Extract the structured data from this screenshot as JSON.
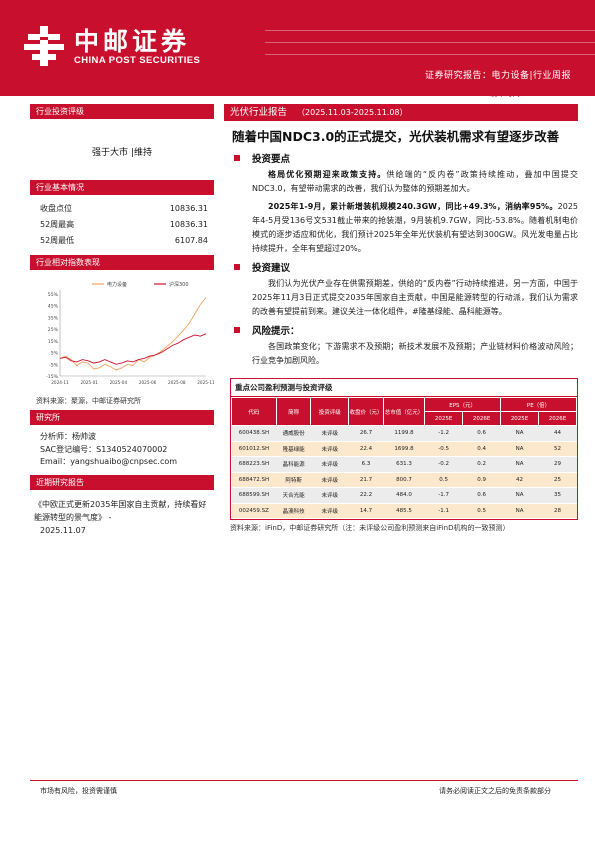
{
  "header": {
    "brand_cn": "中邮证券",
    "brand_en": "CHINA POST SECURITIES",
    "report_type": "证券研究报告：电力设备|行业周报",
    "publish_time": "发布时间：2025-11-11"
  },
  "left": {
    "rating_section": "行业投资评级",
    "rating_value": "强于大市 |维持",
    "basic_section": "行业基本情况",
    "basic_rows": [
      {
        "label": "收盘点位",
        "value": "10836.31"
      },
      {
        "label": "52周最高",
        "value": "10836.31"
      },
      {
        "label": "52周最低",
        "value": "6107.84"
      }
    ],
    "perf_section": "行业相对指数表现",
    "chart_source": "资料来源：聚源，中邮证券研究所",
    "analyst_section": "研究所",
    "analyst_lines": [
      "分析师：杨帅波",
      "SAC登记编号：S1340524070002",
      "Email：yangshuaibo@cnpsec.com"
    ],
    "recent_section": "近期研究报告",
    "recent_title": "《中欧正式更新2035年国家自主贡献，持续看好能源转型的景气度》 -",
    "recent_date": "2025.11.07"
  },
  "chart_data": {
    "type": "line",
    "legend": [
      "电力设备",
      "沪深300"
    ],
    "colors": {
      "电力设备": "#f2a35c",
      "沪深300": "#c8102e"
    },
    "y_ticks": [
      "55%",
      "45%",
      "35%",
      "25%",
      "15%",
      "5%",
      "-5%",
      "-15%"
    ],
    "ylim": [
      -15,
      55
    ],
    "x_ticks": [
      "2024-11",
      "2025-01",
      "2025-04",
      "2025-06",
      "2025-08",
      "2025-11"
    ],
    "series": [
      {
        "name": "电力设备",
        "values": [
          0,
          2,
          -1,
          -6,
          -3,
          -4,
          -9,
          -8,
          -5,
          -7,
          -10,
          -8,
          -5,
          -6,
          -1,
          -3,
          1,
          3,
          6,
          10,
          14,
          19,
          24,
          30,
          38,
          46,
          52
        ]
      },
      {
        "name": "沪深300",
        "values": [
          0,
          1,
          -2,
          -3,
          -1,
          -2,
          -4,
          -3,
          -1,
          -3,
          -5,
          -4,
          -2,
          -3,
          -1,
          0,
          2,
          3,
          5,
          8,
          11,
          13,
          16,
          18,
          20,
          19,
          21
        ]
      }
    ]
  },
  "right": {
    "topic": "光伏行业报告",
    "topic_date": "（2025.11.03-2025.11.08）",
    "title": "随着中国NDC3.0的正式提交，光伏装机需求有望逐步改善",
    "sec1": "投资要点",
    "p1_bold": "格局优化预期迎来政策支持。",
    "p1_rest": "供给端的“反内卷”政策持续推动，叠加中国提交NDC3.0，有望带动需求的改善，我们认为整体的预期差加大。",
    "p2_bold": "2025年1-9月，累计新增装机规模240.3GW，同比+49.3%，消纳率95%。",
    "p2_rest": "2025年4-5月受136号文531截止带来的抢装潮，9月装机9.7GW，同比-53.8%。随着机制电价模式的逐步适应和优化，我们预计2025年全年光伏装机有望达到300GW。风光发电量占比持续提升，全年有望超过20%。",
    "sec2": "投资建议",
    "p3": "我们认为光伏产业存在供需预期差，供给的“反内卷”行动持续推进，另一方面，中国于2025年11月3日正式提交2035年国家自主贡献，中国是能源转型的行动派，我们认为需求的改善有望提前到来。建议关注一体化组件，#隆基绿能、晶科能源等。",
    "sec3": "风险提示：",
    "p4": "各国政策变化；下游需求不及预期；新技术发展不及预期；产业链材料价格波动风险；行业竞争加剧风险。"
  },
  "table": {
    "title": "重点公司盈利预测与投资评级",
    "headers": [
      "代码",
      "简称",
      "投资评级",
      "收盘价（元）",
      "总市值（亿元）",
      "EPS（元）",
      "PE（倍）"
    ],
    "sub_headers": [
      "2025E",
      "2026E",
      "2025E",
      "2026E"
    ],
    "rows": [
      [
        "600438.SH",
        "通威股份",
        "未评级",
        "26.7",
        "1199.8",
        "-1.2",
        "0.6",
        "NA",
        "44"
      ],
      [
        "601012.SH",
        "隆基绿能",
        "未评级",
        "22.4",
        "1699.8",
        "-0.5",
        "0.4",
        "NA",
        "52"
      ],
      [
        "688223.SH",
        "晶科能源",
        "未评级",
        "6.3",
        "631.3",
        "-0.2",
        "0.2",
        "NA",
        "29"
      ],
      [
        "688472.SH",
        "阿特斯",
        "未评级",
        "21.7",
        "800.7",
        "0.5",
        "0.9",
        "42",
        "25"
      ],
      [
        "688599.SH",
        "天合光能",
        "未评级",
        "22.2",
        "484.0",
        "-1.7",
        "0.6",
        "NA",
        "35"
      ],
      [
        "002459.SZ",
        "晶澳科技",
        "未评级",
        "14.7",
        "485.5",
        "-1.1",
        "0.5",
        "NA",
        "28"
      ]
    ],
    "note": "资料来源：iFinD，中邮证券研究所（注：未评级公司盈利预测来自iFinD机构的一致预测）"
  },
  "footer": {
    "left": "市场有风险，投资需谨慎",
    "right": "请务必阅读正文之后的免责条款部分"
  }
}
